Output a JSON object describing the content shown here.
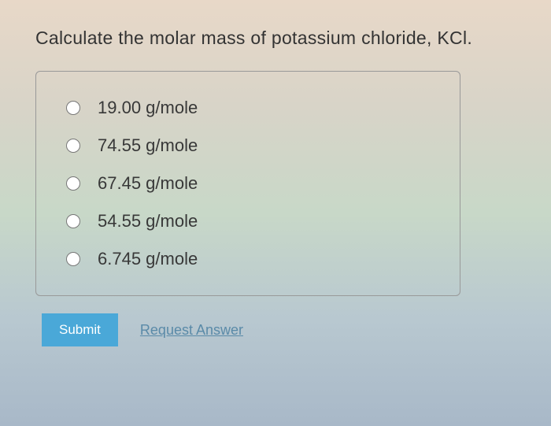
{
  "question": {
    "prompt": "Calculate the molar mass of potassium chloride, KCl."
  },
  "options": [
    {
      "label": "19.00 g/mole"
    },
    {
      "label": "74.55 g/mole"
    },
    {
      "label": "67.45 g/mole"
    },
    {
      "label": "54.55 g/mole"
    },
    {
      "label": "6.745 g/mole"
    }
  ],
  "buttons": {
    "submit": "Submit",
    "request_answer": "Request Answer"
  }
}
